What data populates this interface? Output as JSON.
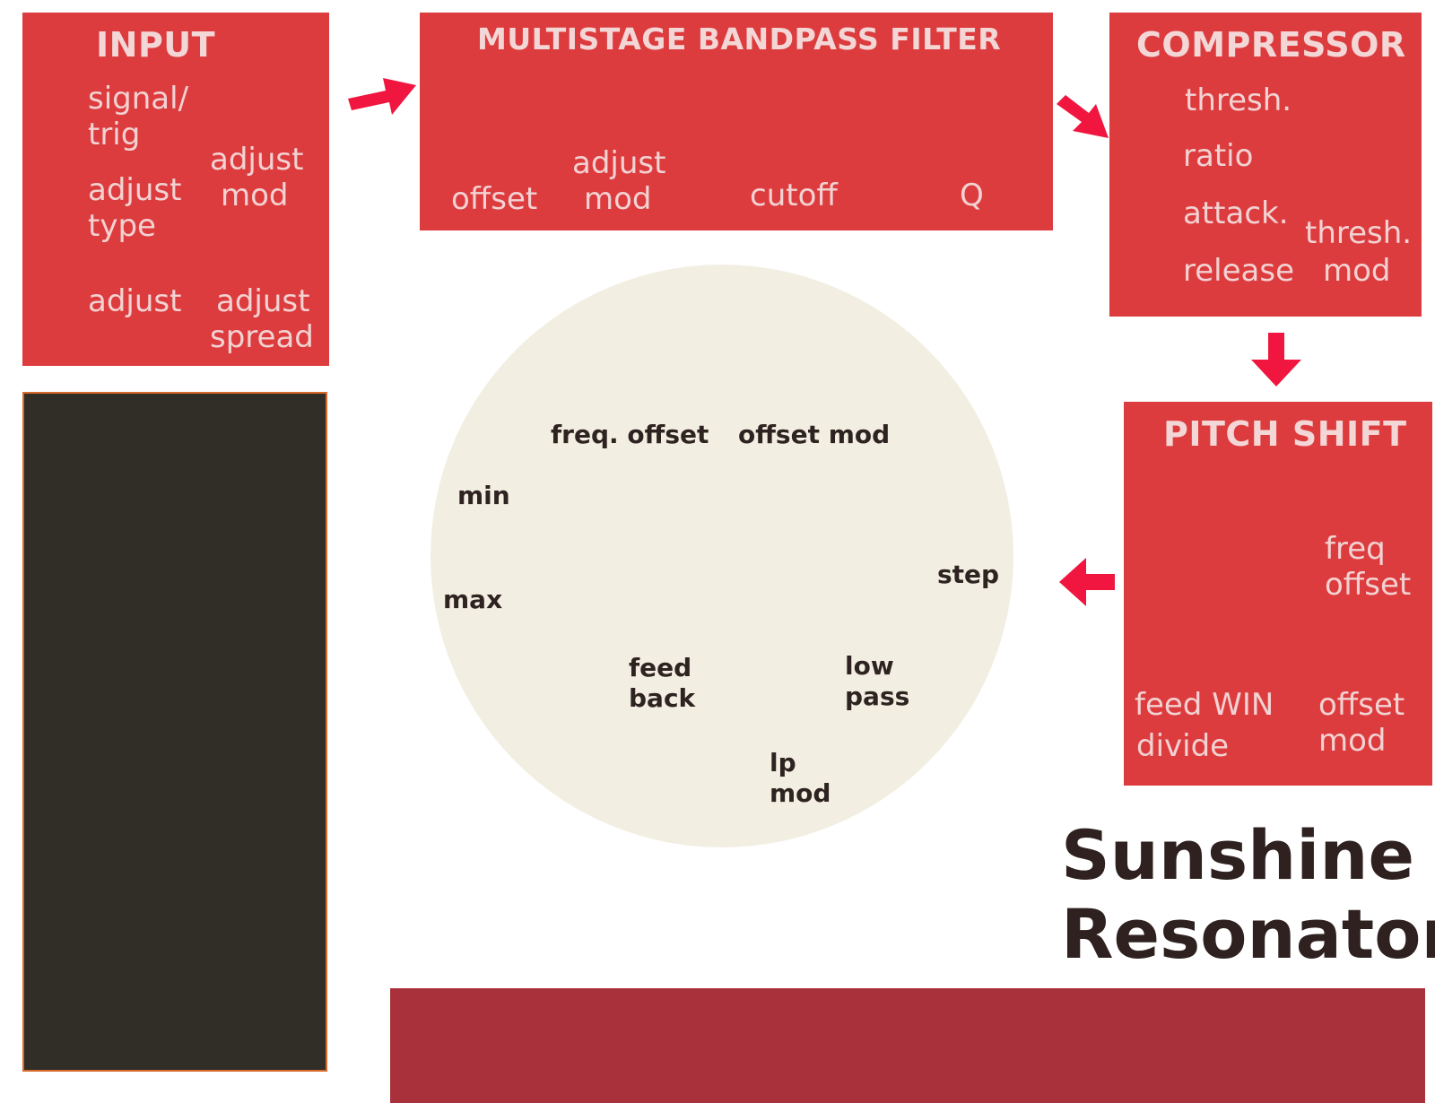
{
  "input": {
    "title": "INPUT",
    "signal_1": "signal/",
    "signal_2": "trig",
    "adjust_mod_1": "adjust",
    "adjust_mod_2": "mod",
    "adjust_type_1": "adjust",
    "adjust_type_2": "type",
    "adjust": "adjust",
    "adjust_spread_1": "adjust",
    "adjust_spread_2": "spread"
  },
  "filter": {
    "title": "MULTISTAGE BANDPASS FILTER",
    "offset": "offset",
    "adjust_mod_1": "adjust",
    "adjust_mod_2": "mod",
    "cutoff": "cutoff",
    "q": "Q"
  },
  "compressor": {
    "title": "COMPRESSOR",
    "thresh": "thresh.",
    "ratio": "ratio",
    "attack": "attack.",
    "release": "release",
    "thresh_mod_1": "thresh.",
    "thresh_mod_2": "mod"
  },
  "pitch": {
    "title": "PITCH SHIFT",
    "freq_offset_1": "freq",
    "freq_offset_2": "offset",
    "feed_win": "feed WIN",
    "divide": "divide",
    "offset_mod_1": "offset",
    "offset_mod_2": "mod"
  },
  "resonator": {
    "freq_offset": "freq. offset",
    "offset_mod": "offset mod",
    "min": "min",
    "max": "max",
    "step": "step",
    "feedback_1": "feed",
    "feedback_2": "back",
    "lowpass_1": "low",
    "lowpass_2": "pass",
    "lpmod_1": "lp",
    "lpmod_2": "mod"
  },
  "brand": {
    "line1": "Sunshine",
    "line2": "Resonator"
  },
  "colors": {
    "panel": "#dd3c3e",
    "arrow": "#f0163f",
    "circle": "#f2efe2",
    "dark_panel": "#312e27",
    "bottom_bar": "#a9313b",
    "brand_text": "#2e211f"
  }
}
